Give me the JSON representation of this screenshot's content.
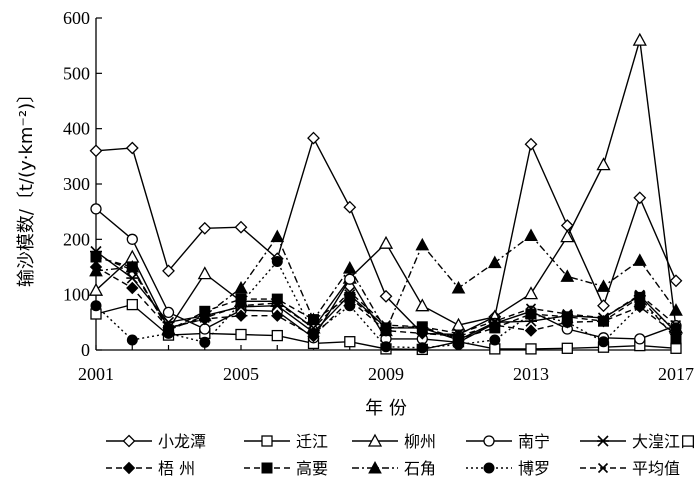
{
  "chart_data": {
    "type": "line",
    "xlabel": "年 份",
    "ylabel": "输沙模数/〔t/(y·km⁻²)〕",
    "ylim": [
      0,
      600
    ],
    "xlim": [
      2001,
      2017
    ],
    "yticks": [
      0,
      100,
      200,
      300,
      400,
      500,
      600
    ],
    "xticks": [
      2001,
      2005,
      2009,
      2013,
      2017
    ],
    "grid": false,
    "legend_position": "bottom",
    "x": [
      2001,
      2002,
      2003,
      2004,
      2005,
      2006,
      2007,
      2008,
      2009,
      2010,
      2011,
      2012,
      2013,
      2014,
      2015,
      2016,
      2017
    ],
    "series": [
      {
        "name": "小龙潭",
        "dash": "solid",
        "marker": "diamond-open",
        "values": [
          360,
          365,
          143,
          220,
          222,
          165,
          383,
          258,
          97,
          30,
          28,
          60,
          372,
          225,
          80,
          275,
          125
        ]
      },
      {
        "name": "迁江",
        "dash": "solid",
        "marker": "square-open",
        "values": [
          65,
          82,
          27,
          30,
          28,
          26,
          12,
          15,
          2,
          1,
          15,
          2,
          2,
          3,
          5,
          8,
          3
        ]
      },
      {
        "name": "柳州",
        "dash": "solid",
        "marker": "triangle-open",
        "values": [
          108,
          168,
          38,
          138,
          88,
          88,
          40,
          130,
          193,
          80,
          45,
          60,
          102,
          205,
          335,
          560,
          40
        ]
      },
      {
        "name": "南宁",
        "dash": "solid",
        "marker": "circle-open",
        "values": [
          255,
          200,
          68,
          38,
          72,
          70,
          22,
          128,
          20,
          20,
          14,
          48,
          70,
          38,
          22,
          20,
          44
        ]
      },
      {
        "name": "大湟江口",
        "dash": "solid",
        "marker": "star",
        "values": [
          178,
          130,
          50,
          62,
          78,
          80,
          32,
          100,
          40,
          40,
          18,
          50,
          52,
          62,
          58,
          98,
          32
        ]
      },
      {
        "name": "梧 州",
        "dash": "dashed",
        "marker": "diamond-filled",
        "values": [
          150,
          112,
          40,
          56,
          62,
          62,
          25,
          90,
          35,
          30,
          25,
          45,
          35,
          50,
          52,
          78,
          28
        ]
      },
      {
        "name": "高要",
        "dash": "dashed",
        "marker": "square-filled",
        "values": [
          168,
          150,
          35,
          70,
          92,
          92,
          55,
          95,
          40,
          42,
          20,
          40,
          65,
          60,
          52,
          95,
          20
        ]
      },
      {
        "name": "石角",
        "dash": "dashdot",
        "marker": "triangle-filled",
        "values": [
          143,
          150,
          36,
          62,
          112,
          205,
          55,
          148,
          35,
          190,
          112,
          158,
          207,
          133,
          115,
          162,
          72
        ]
      },
      {
        "name": "博罗",
        "dash": "dotted",
        "marker": "circle-filled",
        "values": [
          80,
          18,
          30,
          14,
          85,
          160,
          30,
          80,
          6,
          4,
          10,
          18,
          65,
          50,
          15,
          80,
          40
        ]
      },
      {
        "name": "平均值",
        "dash": "dashed",
        "marker": "x",
        "values": [
          170,
          145,
          40,
          58,
          80,
          85,
          40,
          105,
          45,
          42,
          30,
          52,
          75,
          65,
          58,
          100,
          45
        ]
      }
    ]
  }
}
